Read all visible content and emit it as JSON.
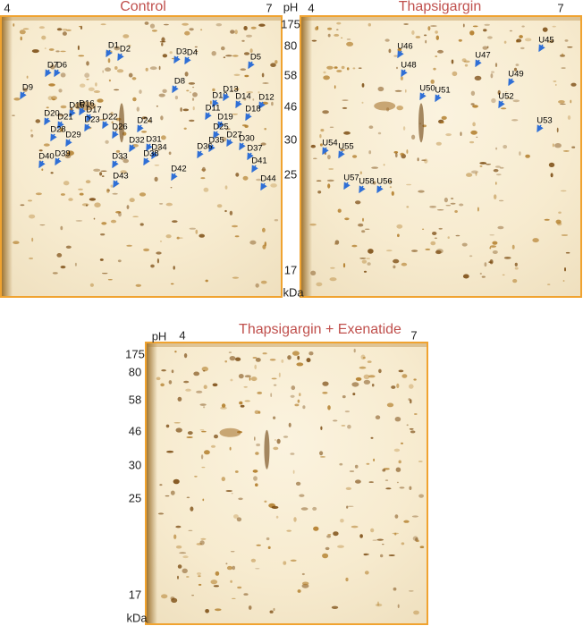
{
  "figure": {
    "axis_top": {
      "ph": "pH",
      "mw": [
        "175",
        "80",
        "58",
        "46",
        "30",
        "25",
        "17"
      ],
      "unit": "kDa"
    },
    "axis_bottom": {
      "ph": "pH",
      "mw": [
        "175",
        "80",
        "58",
        "46",
        "30",
        "25",
        "17"
      ],
      "unit": "kDa"
    },
    "panels": [
      {
        "title": "Control",
        "ph_low": "4",
        "ph_high": "7",
        "spots": [
          "D1",
          "D2",
          "D3",
          "D4",
          "D5",
          "D7",
          "D6",
          "D8",
          "D9",
          "D10",
          "D13",
          "D14",
          "D12",
          "D11",
          "D18",
          "D15",
          "D16",
          "D17",
          "D20",
          "D21",
          "D22",
          "D23",
          "D24",
          "D26",
          "D19",
          "D25",
          "D28",
          "D29",
          "D27",
          "D30",
          "D32",
          "D31",
          "D34",
          "D35",
          "D36",
          "D37",
          "D33",
          "D38",
          "D40",
          "D39",
          "D41",
          "D42",
          "D43",
          "D44"
        ]
      },
      {
        "title": "Thapsigargin",
        "ph_low": "4",
        "ph_high": "7",
        "spots": [
          "U46",
          "U45",
          "U47",
          "U48",
          "U49",
          "U50",
          "U51",
          "U52",
          "U53",
          "U54",
          "U55",
          "U57",
          "U58",
          "U56"
        ]
      },
      {
        "title": "Thapsigargin + Exenatide",
        "ph_low": "4",
        "ph_high": "7",
        "spots": []
      }
    ]
  }
}
